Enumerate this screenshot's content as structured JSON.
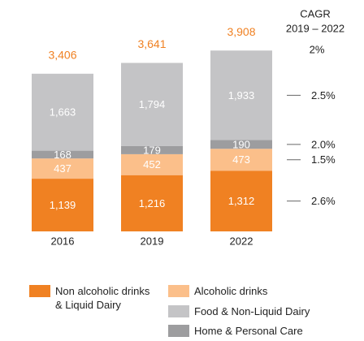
{
  "chart_data": {
    "type": "stacked_bar",
    "categories": [
      "2016",
      "2019",
      "2022"
    ],
    "series": [
      {
        "name": "Non alcoholic drinks & Liquid Dairy",
        "color": "#f08122",
        "values": [
          1139,
          1216,
          1312
        ],
        "value_labels": [
          "1,139",
          "1,216",
          "1,312"
        ],
        "cagr": "2.6%"
      },
      {
        "name": "Alcoholic drinks",
        "color": "#fbbf8a",
        "values": [
          437,
          452,
          473
        ],
        "value_labels": [
          "437",
          "452",
          "473"
        ],
        "cagr": "1.5%"
      },
      {
        "name": "Home & Personal Care",
        "color": "#9d9d9f",
        "values": [
          168,
          179,
          190
        ],
        "value_labels": [
          "168",
          "179",
          "190"
        ],
        "cagr": "2.0%"
      },
      {
        "name": "Food & Non-Liquid Dairy",
        "color": "#c4c4c6",
        "values": [
          1663,
          1794,
          1933
        ],
        "value_labels": [
          "1,663",
          "1,794",
          "1,933"
        ],
        "cagr": "2.5%"
      }
    ],
    "totals": {
      "values": [
        3406,
        3641,
        3908
      ],
      "labels": [
        "3,406",
        "3,641",
        "3,908"
      ],
      "color": "#f08122"
    },
    "cagr_title": "CAGR",
    "cagr_period": "2019 – 2022",
    "total_cagr": "2%"
  }
}
